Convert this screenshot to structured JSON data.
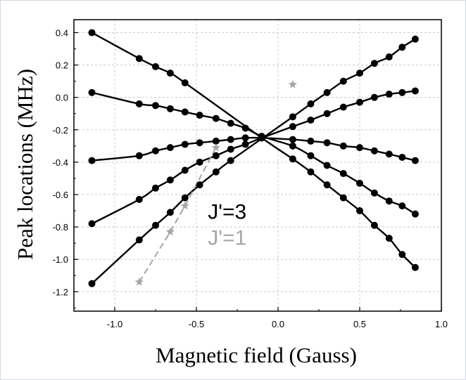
{
  "chart_data": {
    "type": "scatter",
    "title": "",
    "xlabel": "Magnetic field (Gauss)",
    "ylabel": "Peak locations (MHz)",
    "xlim": [
      -1.25,
      1.0
    ],
    "ylim": [
      -1.32,
      0.48
    ],
    "x_ticks": [
      -1.0,
      -0.5,
      0.0,
      0.5,
      1.0
    ],
    "x_tick_labels": [
      "-1.0",
      "-0.5",
      "0.0",
      "0.5",
      "1.0"
    ],
    "y_ticks": [
      0.4,
      0.2,
      0.0,
      -0.2,
      -0.4,
      -0.6,
      -0.8,
      -1.0,
      -1.2
    ],
    "y_tick_labels": [
      "0.4",
      "0.2",
      "0.0",
      "-0.2",
      "-0.4",
      "-0.6",
      "-0.8",
      "-1.0",
      "-1.2"
    ],
    "grid": true,
    "grid_style": "dashed",
    "annotations": [
      {
        "text": "J'=3",
        "x": -0.43,
        "y": -0.75,
        "color": "#000000"
      },
      {
        "text": "J'=1",
        "x": -0.43,
        "y": -0.91,
        "color": "#a6a6a6"
      }
    ],
    "series": [
      {
        "marker": "circle",
        "color": "#000000",
        "fit": "solid",
        "x": [
          -1.14,
          -0.85,
          -0.75,
          -0.66,
          -0.57,
          -0.1,
          0.09,
          0.2,
          0.3,
          0.4,
          0.5,
          0.59,
          0.68,
          0.76,
          0.84
        ],
        "y": [
          0.4,
          0.24,
          0.19,
          0.15,
          0.09,
          -0.25,
          -0.38,
          -0.46,
          -0.54,
          -0.62,
          -0.7,
          -0.79,
          -0.87,
          -0.97,
          -1.05
        ]
      },
      {
        "marker": "circle",
        "color": "#000000",
        "fit": "solid",
        "x": [
          -1.14,
          -0.85,
          -0.75,
          -0.66,
          -0.57,
          -0.48,
          -0.38,
          -0.29,
          -0.2,
          -0.1,
          0.09,
          0.2,
          0.3,
          0.4,
          0.5,
          0.59,
          0.68,
          0.76,
          0.84
        ],
        "y": [
          0.03,
          -0.04,
          -0.05,
          -0.07,
          -0.09,
          -0.11,
          -0.13,
          -0.16,
          -0.19,
          -0.24,
          -0.3,
          -0.36,
          -0.42,
          -0.47,
          -0.53,
          -0.59,
          -0.64,
          -0.67,
          -0.72
        ]
      },
      {
        "marker": "circle",
        "color": "#000000",
        "fit": "solid",
        "x": [
          -1.14,
          -0.85,
          -0.75,
          -0.66,
          -0.57,
          -0.48,
          -0.38,
          -0.29,
          -0.2,
          -0.1,
          0.09,
          0.2,
          0.3,
          0.4,
          0.5,
          0.59,
          0.68,
          0.76,
          0.84
        ],
        "y": [
          -0.39,
          -0.36,
          -0.33,
          -0.31,
          -0.29,
          -0.28,
          -0.27,
          -0.26,
          -0.25,
          -0.25,
          -0.26,
          -0.27,
          -0.28,
          -0.3,
          -0.31,
          -0.33,
          -0.35,
          -0.37,
          -0.39
        ]
      },
      {
        "marker": "circle",
        "color": "#000000",
        "fit": "solid",
        "x": [
          -1.14,
          -0.85,
          -0.75,
          -0.66,
          -0.57,
          -0.48,
          -0.38,
          -0.29,
          -0.2,
          -0.1,
          0.09,
          0.2,
          0.3,
          0.4,
          0.5,
          0.59,
          0.68,
          0.76,
          0.84
        ],
        "y": [
          -0.78,
          -0.63,
          -0.56,
          -0.51,
          -0.45,
          -0.4,
          -0.36,
          -0.32,
          -0.29,
          -0.25,
          -0.18,
          -0.14,
          -0.1,
          -0.06,
          -0.03,
          0.0,
          0.02,
          0.03,
          0.04
        ]
      },
      {
        "marker": "circle",
        "color": "#000000",
        "fit": "solid",
        "x": [
          -1.14,
          -0.85,
          -0.75,
          -0.66,
          -0.57,
          -0.48,
          -0.38,
          -0.29,
          0.09,
          0.2,
          0.3,
          0.4,
          0.5,
          0.59,
          0.68,
          0.76,
          0.84
        ],
        "y": [
          -1.15,
          -0.88,
          -0.79,
          -0.71,
          -0.62,
          -0.54,
          -0.46,
          -0.39,
          -0.12,
          -0.04,
          0.03,
          0.1,
          0.15,
          0.21,
          0.25,
          0.31,
          0.36
        ]
      },
      {
        "marker": "star",
        "color": "#a6a6a6",
        "fit": "dashed",
        "x": [
          -0.85,
          -0.66,
          -0.57,
          -0.38,
          0.09
        ],
        "y": [
          -1.14,
          -0.83,
          -0.67,
          -0.31,
          0.08
        ]
      }
    ]
  }
}
